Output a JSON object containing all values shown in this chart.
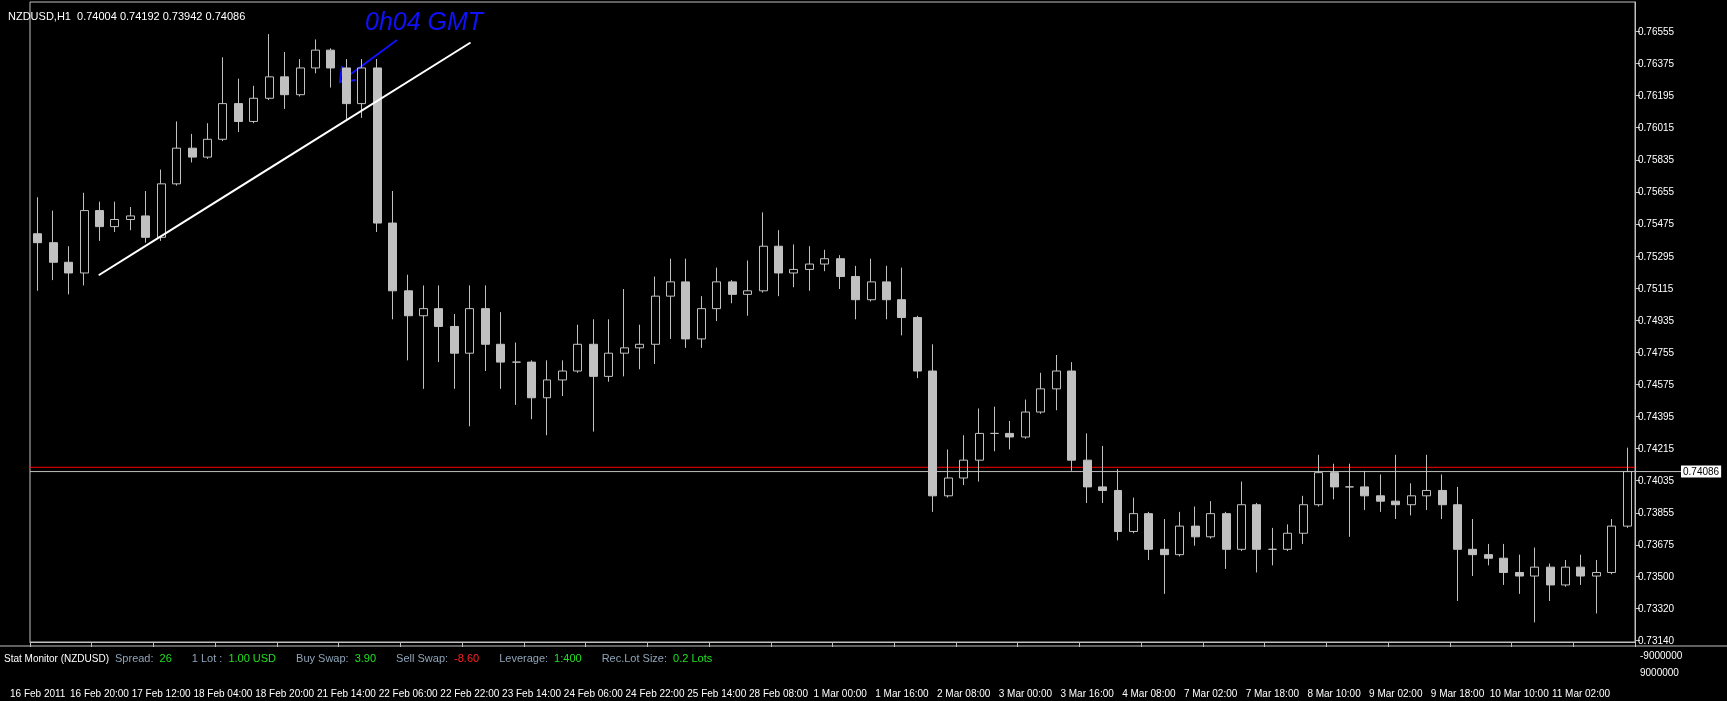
{
  "chart_data": {
    "type": "candlestick",
    "title": "NZDUSD,H1  0.74004 0.74192 0.73942 0.74086",
    "categories": [
      "16 Feb 2011",
      null,
      null,
      null,
      "16 Feb 20:00",
      null,
      null,
      null,
      "17 Feb 12:00",
      null,
      null,
      null,
      "18 Feb 04:00",
      null,
      null,
      null,
      "18 Feb 20:00",
      null,
      null,
      null,
      "21 Feb 14:00",
      null,
      null,
      null,
      "22 Feb 06:00",
      null,
      null,
      null,
      "22 Feb 22:00",
      null,
      null,
      null,
      "23 Feb 14:00",
      null,
      null,
      null,
      "24 Feb 06:00",
      null,
      null,
      null,
      "24 Feb 22:00",
      null,
      null,
      null,
      "25 Feb 14:00",
      null,
      null,
      null,
      "28 Feb 08:00",
      null,
      null,
      null,
      "1 Mar 00:00",
      null,
      null,
      null,
      "1 Mar 16:00",
      null,
      null,
      null,
      "2 Mar 08:00",
      null,
      null,
      null,
      "3 Mar 00:00",
      null,
      null,
      null,
      "3 Mar 16:00",
      null,
      null,
      null,
      "4 Mar 08:00",
      null,
      null,
      null,
      "7 Mar 02:00",
      null,
      null,
      null,
      "7 Mar 18:00",
      null,
      null,
      null,
      "8 Mar 10:00",
      null,
      null,
      null,
      "9 Mar 02:00",
      null,
      null,
      null,
      "9 Mar 18:00",
      null,
      null,
      null,
      "10 Mar 10:00",
      null,
      null,
      null,
      "11 Mar 02:00",
      null,
      null,
      null
    ],
    "series": [
      {
        "color": "#c0c0c0",
        "ohlc": [
          [
            0.7542,
            0.75625,
            0.751,
            0.7537
          ],
          [
            0.7537,
            0.7555,
            0.7516,
            0.7526
          ],
          [
            0.7526,
            0.7535,
            0.7508,
            0.752
          ],
          [
            0.752,
            0.7565,
            0.7513,
            0.7555
          ],
          [
            0.7555,
            0.756,
            0.7538,
            0.7546
          ],
          [
            0.7546,
            0.756,
            0.7543,
            0.755
          ],
          [
            0.755,
            0.7557,
            0.7544,
            0.7552
          ],
          [
            0.7552,
            0.7566,
            0.7537,
            0.754
          ],
          [
            0.754,
            0.7578,
            0.7538,
            0.757
          ],
          [
            0.757,
            0.7605,
            0.7569,
            0.759
          ],
          [
            0.759,
            0.7598,
            0.7582,
            0.7585
          ],
          [
            0.7585,
            0.7604,
            0.7584,
            0.7595
          ],
          [
            0.7595,
            0.7641,
            0.7594,
            0.7615
          ],
          [
            0.7615,
            0.7629,
            0.7599,
            0.7605
          ],
          [
            0.7605,
            0.7625,
            0.7604,
            0.7618
          ],
          [
            0.7618,
            0.7654,
            0.7617,
            0.763
          ],
          [
            0.763,
            0.7644,
            0.7612,
            0.762
          ],
          [
            0.762,
            0.764,
            0.7619,
            0.7635
          ],
          [
            0.7635,
            0.7651,
            0.7632,
            0.7645
          ],
          [
            0.7645,
            0.7646,
            0.7624,
            0.7635
          ],
          [
            0.7635,
            0.764,
            0.7606,
            0.7615
          ],
          [
            0.7615,
            0.764,
            0.7607,
            0.7635
          ],
          [
            0.7635,
            0.764,
            0.7543,
            0.7548
          ],
          [
            0.7548,
            0.7566,
            0.7494,
            0.751
          ],
          [
            0.751,
            0.7519,
            0.7471,
            0.7496
          ],
          [
            0.7496,
            0.7513,
            0.7455,
            0.75
          ],
          [
            0.75,
            0.7513,
            0.747,
            0.749
          ],
          [
            0.749,
            0.7497,
            0.7455,
            0.7475
          ],
          [
            0.7475,
            0.7513,
            0.7434,
            0.75
          ],
          [
            0.75,
            0.7513,
            0.7465,
            0.748
          ],
          [
            0.748,
            0.7498,
            0.7455,
            0.747
          ],
          [
            0.747,
            0.7481,
            0.7446,
            0.747
          ],
          [
            0.747,
            0.7471,
            0.7438,
            0.745
          ],
          [
            0.745,
            0.7471,
            0.7429,
            0.746
          ],
          [
            0.746,
            0.7471,
            0.7451,
            0.7465
          ],
          [
            0.7465,
            0.7491,
            0.7464,
            0.748
          ],
          [
            0.748,
            0.7494,
            0.7431,
            0.7462
          ],
          [
            0.7462,
            0.7494,
            0.7459,
            0.7475
          ],
          [
            0.7475,
            0.7511,
            0.7462,
            0.7478
          ],
          [
            0.7478,
            0.7491,
            0.7466,
            0.748
          ],
          [
            0.748,
            0.7518,
            0.7469,
            0.7507
          ],
          [
            0.7507,
            0.7528,
            0.7483,
            0.7515
          ],
          [
            0.7515,
            0.7528,
            0.7478,
            0.7483
          ],
          [
            0.7483,
            0.7507,
            0.7478,
            0.75
          ],
          [
            0.75,
            0.7523,
            0.7493,
            0.7515
          ],
          [
            0.7515,
            0.7516,
            0.7503,
            0.7508
          ],
          [
            0.7508,
            0.7527,
            0.7496,
            0.751
          ],
          [
            0.751,
            0.7554,
            0.7509,
            0.7535
          ],
          [
            0.7535,
            0.7544,
            0.7507,
            0.752
          ],
          [
            0.752,
            0.7536,
            0.7512,
            0.7522
          ],
          [
            0.7522,
            0.7535,
            0.751,
            0.7525
          ],
          [
            0.7525,
            0.7533,
            0.7521,
            0.7528
          ],
          [
            0.7528,
            0.753,
            0.7511,
            0.7518
          ],
          [
            0.7518,
            0.7524,
            0.7494,
            0.7505
          ],
          [
            0.7505,
            0.7528,
            0.7504,
            0.7515
          ],
          [
            0.7515,
            0.7524,
            0.7494,
            0.7505
          ],
          [
            0.7505,
            0.7523,
            0.7485,
            0.7495
          ],
          [
            0.7495,
            0.7496,
            0.7461,
            0.7465
          ],
          [
            0.7465,
            0.748,
            0.7386,
            0.7395
          ],
          [
            0.7395,
            0.7421,
            0.7394,
            0.7405
          ],
          [
            0.7405,
            0.7429,
            0.7401,
            0.7415
          ],
          [
            0.7415,
            0.7444,
            0.7403,
            0.743
          ],
          [
            0.743,
            0.7445,
            0.742,
            0.743
          ],
          [
            0.743,
            0.7437,
            0.7421,
            0.7428
          ],
          [
            0.7428,
            0.7449,
            0.7427,
            0.7442
          ],
          [
            0.7442,
            0.7464,
            0.7441,
            0.7455
          ],
          [
            0.7455,
            0.7474,
            0.7443,
            0.7465
          ],
          [
            0.7465,
            0.747,
            0.7409,
            0.7415
          ],
          [
            0.7415,
            0.743,
            0.7391,
            0.74
          ],
          [
            0.74,
            0.7423,
            0.7391,
            0.7398
          ],
          [
            0.7398,
            0.741,
            0.737,
            0.7375
          ],
          [
            0.7375,
            0.7394,
            0.7374,
            0.7385
          ],
          [
            0.7385,
            0.7386,
            0.7359,
            0.7365
          ],
          [
            0.7365,
            0.7382,
            0.734,
            0.7362
          ],
          [
            0.7362,
            0.7386,
            0.7361,
            0.7378
          ],
          [
            0.7378,
            0.7389,
            0.7367,
            0.7372
          ],
          [
            0.7372,
            0.7392,
            0.7371,
            0.7385
          ],
          [
            0.7385,
            0.7386,
            0.7354,
            0.7365
          ],
          [
            0.7365,
            0.7403,
            0.7364,
            0.739
          ],
          [
            0.739,
            0.7391,
            0.7352,
            0.7365
          ],
          [
            0.7365,
            0.7377,
            0.7356,
            0.7365
          ],
          [
            0.7365,
            0.7379,
            0.7364,
            0.7374
          ],
          [
            0.7374,
            0.7395,
            0.7368,
            0.739
          ],
          [
            0.739,
            0.7418,
            0.7389,
            0.7408
          ],
          [
            0.7408,
            0.7413,
            0.7393,
            0.74
          ],
          [
            0.74,
            0.7413,
            0.7372,
            0.74
          ],
          [
            0.74,
            0.7409,
            0.7387,
            0.7395
          ],
          [
            0.7395,
            0.7407,
            0.7386,
            0.7392
          ],
          [
            0.7392,
            0.7418,
            0.7382,
            0.739
          ],
          [
            0.739,
            0.7402,
            0.7384,
            0.7395
          ],
          [
            0.7395,
            0.7418,
            0.7387,
            0.7398
          ],
          [
            0.7398,
            0.7407,
            0.7382,
            0.739
          ],
          [
            0.739,
            0.74,
            0.7336,
            0.7365
          ],
          [
            0.7365,
            0.7382,
            0.735,
            0.7362
          ],
          [
            0.7362,
            0.7368,
            0.7356,
            0.736
          ],
          [
            0.736,
            0.7368,
            0.7345,
            0.7352
          ],
          [
            0.7352,
            0.7362,
            0.734,
            0.735
          ],
          [
            0.735,
            0.7366,
            0.7324,
            0.7355
          ],
          [
            0.7355,
            0.7357,
            0.7336,
            0.7345
          ],
          [
            0.7345,
            0.7359,
            0.7344,
            0.7355
          ],
          [
            0.7355,
            0.7362,
            0.7345,
            0.735
          ],
          [
            0.735,
            0.7359,
            0.7329,
            0.7352
          ],
          [
            0.7352,
            0.7382,
            0.7351,
            0.7378
          ],
          [
            0.7378,
            0.7422,
            0.7377,
            0.74086
          ]
        ]
      },
      {
        "type": "line",
        "color": "#ffffff",
        "x": [
          "16 Feb 20:00",
          "22 Feb 22:00"
        ],
        "values": [
          0.7519,
          0.7649
        ]
      }
    ],
    "ylim": [
      0.7313,
      0.7672
    ],
    "yticks": [
      {
        "value": 0.7314,
        "label": "0.73140"
      },
      {
        "value": 0.7332,
        "label": "0.73320"
      },
      {
        "value": 0.735,
        "label": "0.73500"
      },
      0.73675,
      0.73855,
      0.74035,
      0.74215,
      0.74395,
      0.74575,
      0.74755,
      0.74935,
      0.75115,
      0.75295,
      0.75475,
      0.75655,
      0.75835,
      0.76015,
      0.76195,
      0.76375,
      0.76555
    ],
    "ref_lines": [
      {
        "axis": "y",
        "value": 0.7411,
        "color": "#ff0000"
      },
      {
        "axis": "y",
        "value": 0.74086,
        "label": "0.74086",
        "color": "#c0c0c0"
      }
    ],
    "annotations": [
      "0h04 GMT",
      "Stat Monitor (NZDUSD)",
      "Spread:",
      "26",
      "1 Lot :",
      "1.00 USD",
      "Buy Swap:",
      "3.90",
      "Sell Swap:",
      "-8.60",
      "Leverage:",
      "1:400",
      "Rec.Lot Size:",
      "0.2 Lots",
      "-9000000",
      "9000000"
    ],
    "grid": false
  }
}
